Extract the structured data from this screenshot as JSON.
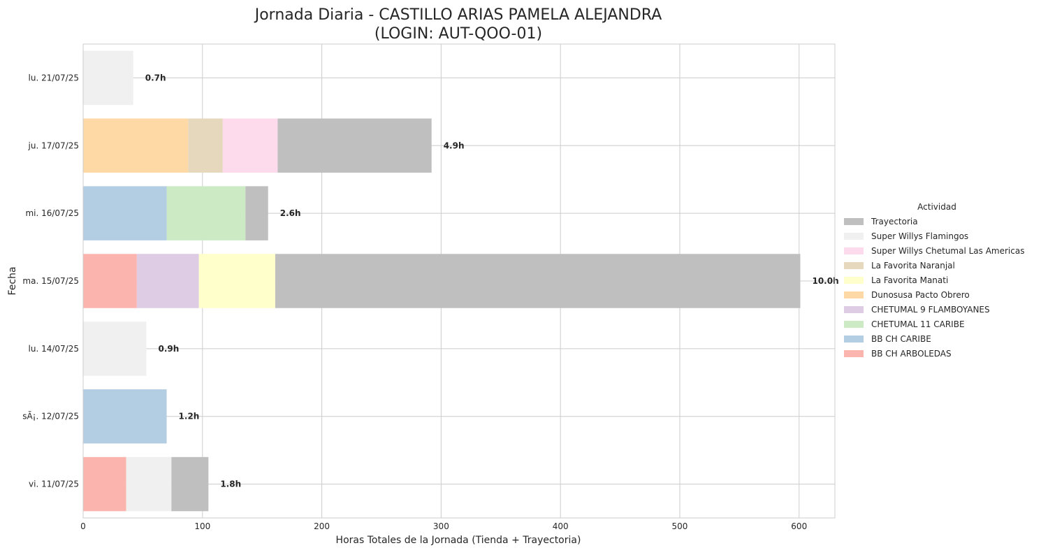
{
  "chart_data": {
    "type": "bar",
    "orientation": "horizontal",
    "stacked": true,
    "title": "Jornada Diaria - CASTILLO ARIAS PAMELA ALEJANDRA",
    "subtitle": "(LOGIN: AUT-QOO-01)",
    "xlabel": "Horas Totales de la Jornada (Tienda + Trayectoria)",
    "ylabel": "Fecha",
    "xlim": [
      0,
      630
    ],
    "xticks": [
      0,
      100,
      200,
      300,
      400,
      500,
      600
    ],
    "grid": true,
    "legend": {
      "title": "Actividad",
      "placement": "right"
    },
    "categories": [
      "lu. 21/07/25",
      "ju. 17/07/25",
      "mi. 16/07/25",
      "ma. 15/07/25",
      "lu. 14/07/25",
      "sÃ¡. 12/07/25",
      "vi. 11/07/25"
    ],
    "total_labels": [
      "0.7h",
      "4.9h",
      "2.6h",
      "10.0h",
      "0.9h",
      "1.2h",
      "1.8h"
    ],
    "series": [
      {
        "name": "BB CH ARBOLEDAS",
        "color": "#fbb4ae",
        "values": [
          0,
          0,
          0,
          45,
          0,
          0,
          36
        ]
      },
      {
        "name": "BB CH CARIBE",
        "color": "#b3cde3",
        "values": [
          0,
          0,
          70,
          0,
          0,
          70,
          0
        ]
      },
      {
        "name": "CHETUMAL 11 CARIBE",
        "color": "#ccebc5",
        "values": [
          0,
          0,
          66,
          0,
          0,
          0,
          0
        ]
      },
      {
        "name": "CHETUMAL 9 FLAMBOYANES",
        "color": "#decbe4",
        "values": [
          0,
          0,
          0,
          52,
          0,
          0,
          0
        ]
      },
      {
        "name": "Dunosusa Pacto Obrero",
        "color": "#fed9a6",
        "values": [
          0,
          88,
          0,
          0,
          0,
          0,
          0
        ]
      },
      {
        "name": "La Favorita Manati",
        "color": "#ffffcc",
        "values": [
          0,
          0,
          0,
          64,
          0,
          0,
          0
        ]
      },
      {
        "name": "La Favorita Naranjal",
        "color": "#e5d8bd",
        "values": [
          0,
          29,
          0,
          0,
          0,
          0,
          0
        ]
      },
      {
        "name": "Super Willys Chetumal Las Americas",
        "color": "#fddaec",
        "values": [
          0,
          46,
          0,
          0,
          0,
          0,
          0
        ]
      },
      {
        "name": "Super Willys Flamingos",
        "color": "#f0f0f0",
        "values": [
          42,
          0,
          0,
          0,
          53,
          0,
          38
        ]
      },
      {
        "name": "Trayectoria",
        "color": "#bfbfbf",
        "values": [
          0,
          129,
          19,
          440,
          0,
          0,
          31
        ]
      }
    ]
  }
}
